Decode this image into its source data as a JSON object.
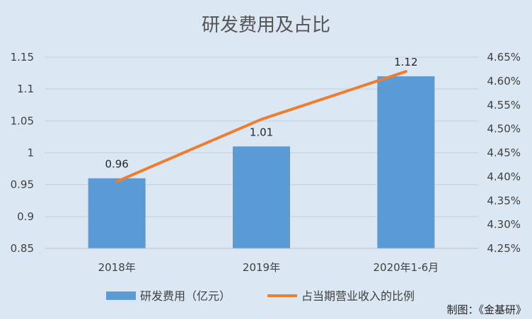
{
  "chart_data": {
    "type": "bar",
    "title": "研发费用及占比",
    "categories": [
      "2018年",
      "2019年",
      "2020年1-6月"
    ],
    "series": [
      {
        "name": "研发费用（亿元）",
        "type": "bar",
        "axis": "left",
        "values": [
          0.96,
          1.01,
          1.12
        ],
        "data_labels": [
          "0.96",
          "1.01",
          "1.12"
        ],
        "color": "#5b9bd5"
      },
      {
        "name": "占当期营业收入的比例",
        "type": "line",
        "axis": "right",
        "values": [
          4.39,
          4.52,
          4.62
        ],
        "color": "#ed7d31"
      }
    ],
    "y_left": {
      "min": 0.85,
      "max": 1.15,
      "ticks": [
        0.85,
        0.9,
        0.95,
        1,
        1.05,
        1.1,
        1.15
      ],
      "tick_labels": [
        "0.85",
        "0.9",
        "0.95",
        "1",
        "1.05",
        "1.1",
        "1.15"
      ]
    },
    "y_right": {
      "min": 4.25,
      "max": 4.65,
      "ticks": [
        4.25,
        4.3,
        4.35,
        4.4,
        4.45,
        4.5,
        4.55,
        4.6,
        4.65
      ],
      "tick_labels": [
        "4.25%",
        "4.30%",
        "4.35%",
        "4.40%",
        "4.45%",
        "4.50%",
        "4.55%",
        "4.60%",
        "4.65%"
      ]
    },
    "grid": true,
    "legend_position": "bottom",
    "background": "#dbe7f3",
    "gridline_color": "#c4d2df"
  },
  "credit": "制图：《金基研》"
}
